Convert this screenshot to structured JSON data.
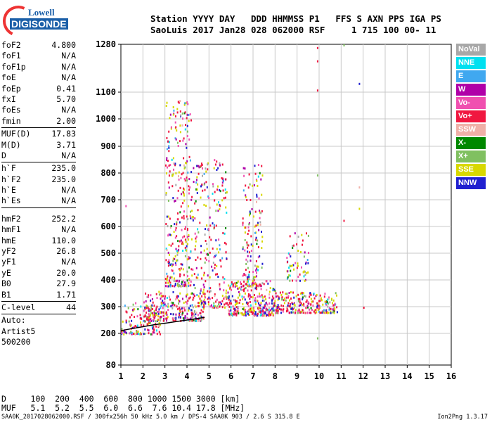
{
  "logo": {
    "top": "Lowell",
    "bottom": "DIGISONDE"
  },
  "header": {
    "line1": "Station YYYY DAY   DDD HHMMSS P1   FFS S AXN PPS IGA PS",
    "line2": "SaoLuis 2017 Jan28 028 062000 RSF     1 715 100 00- 11"
  },
  "params": {
    "group1": [
      {
        "name": "foF2",
        "value": "4.800"
      },
      {
        "name": "foF1",
        "value": "N/A"
      },
      {
        "name": "foF1p",
        "value": "N/A"
      },
      {
        "name": "foE",
        "value": "N/A"
      },
      {
        "name": "foEp",
        "value": "0.41"
      },
      {
        "name": "fxI",
        "value": "5.70"
      },
      {
        "name": "foEs",
        "value": "N/A"
      },
      {
        "name": "fmin",
        "value": "2.00"
      }
    ],
    "group2": [
      {
        "name": "MUF(D)",
        "value": "17.83"
      },
      {
        "name": "M(D)",
        "value": "3.71"
      },
      {
        "name": "D",
        "value": "N/A"
      }
    ],
    "group3": [
      {
        "name": "h`F",
        "value": "235.0"
      },
      {
        "name": "h`F2",
        "value": "235.0"
      },
      {
        "name": "h`E",
        "value": "N/A"
      },
      {
        "name": "h`Es",
        "value": "N/A"
      }
    ],
    "group4": [
      {
        "name": "hmF2",
        "value": "252.2"
      },
      {
        "name": "hmF1",
        "value": "N/A"
      },
      {
        "name": "hmE",
        "value": "110.0"
      },
      {
        "name": "yF2",
        "value": "26.8"
      },
      {
        "name": "yF1",
        "value": "N/A"
      },
      {
        "name": "yE",
        "value": "20.0"
      },
      {
        "name": "B0",
        "value": "27.9"
      },
      {
        "name": "B1",
        "value": "1.71"
      }
    ],
    "group5": [
      {
        "name": "C-level",
        "value": "44"
      }
    ],
    "auto": [
      "Auto:",
      "Artist5",
      "500200"
    ]
  },
  "legend": [
    {
      "label": "NoVal",
      "color": "#a8a8a8"
    },
    {
      "label": "NNE",
      "color": "#00e0f0"
    },
    {
      "label": "E",
      "color": "#40a8f0"
    },
    {
      "label": "W",
      "color": "#b000a8"
    },
    {
      "label": "Vo-",
      "color": "#f050b0"
    },
    {
      "label": "Vo+",
      "color": "#f01840"
    },
    {
      "label": "SSW",
      "color": "#f0b0a8"
    },
    {
      "label": "X-",
      "color": "#008800"
    },
    {
      "label": "X+",
      "color": "#80c060"
    },
    {
      "label": "SSE",
      "color": "#d8d800"
    },
    {
      "label": "NNW",
      "color": "#2020d0"
    }
  ],
  "footer": {
    "line1": "D     100  200  400  600  800 1000 1500 3000 [km]",
    "line2": "MUF   5.1  5.2  5.5  6.0  6.6  7.6 10.4 17.8 [MHz]",
    "info": "SAA0K_2017028062000.RSF / 300fx256h 50 kHz 5.0 km / DPS-4 SAA0K 903 / 2.6 S 315.8 E",
    "version": "Ion2Png 1.3.17"
  },
  "chart_data": {
    "type": "scatter",
    "xlabel": "",
    "ylabel": "",
    "x_ticks": [
      1,
      2,
      3,
      4,
      5,
      6,
      7,
      8,
      9,
      10,
      11,
      12,
      13,
      14,
      15,
      16
    ],
    "y_ticks": [
      80,
      200,
      300,
      400,
      500,
      600,
      700,
      800,
      900,
      1000,
      1100,
      1280
    ],
    "xlim": [
      1,
      16
    ],
    "ylim": [
      80,
      1280
    ],
    "grid": true,
    "trace": {
      "name": "",
      "x": [
        1.0,
        1.5,
        2.0,
        2.5,
        3.0,
        3.5,
        4.0,
        4.5,
        4.8
      ],
      "y": [
        210,
        218,
        225,
        232,
        238,
        244,
        250,
        256,
        260
      ]
    },
    "clusters": [
      {
        "x": [
          1.0,
          2.8
        ],
        "y": [
          200,
          320
        ],
        "count": 140
      },
      {
        "x": [
          2.0,
          4.8
        ],
        "y": [
          250,
          360
        ],
        "count": 260
      },
      {
        "x": [
          3.0,
          4.2
        ],
        "y": [
          380,
          1080
        ],
        "count": 320
      },
      {
        "x": [
          4.2,
          5.8
        ],
        "y": [
          300,
          860
        ],
        "count": 260
      },
      {
        "x": [
          5.8,
          8.0
        ],
        "y": [
          270,
          400
        ],
        "count": 300
      },
      {
        "x": [
          6.5,
          7.4
        ],
        "y": [
          380,
          840
        ],
        "count": 150
      },
      {
        "x": [
          8.0,
          10.8
        ],
        "y": [
          280,
          360
        ],
        "count": 240
      },
      {
        "x": [
          8.5,
          9.5
        ],
        "y": [
          400,
          600
        ],
        "count": 60
      }
    ],
    "outliers": [
      {
        "x": 9.9,
        "y": 1270
      },
      {
        "x": 9.9,
        "y": 1220
      },
      {
        "x": 9.9,
        "y": 1110
      },
      {
        "x": 9.9,
        "y": 795
      },
      {
        "x": 9.9,
        "y": 185
      },
      {
        "x": 11.8,
        "y": 1135
      },
      {
        "x": 11.8,
        "y": 750
      },
      {
        "x": 11.8,
        "y": 670
      },
      {
        "x": 11.1,
        "y": 625
      },
      {
        "x": 1.2,
        "y": 680
      },
      {
        "x": 12.0,
        "y": 300
      },
      {
        "x": 11.1,
        "y": 1280
      }
    ]
  }
}
